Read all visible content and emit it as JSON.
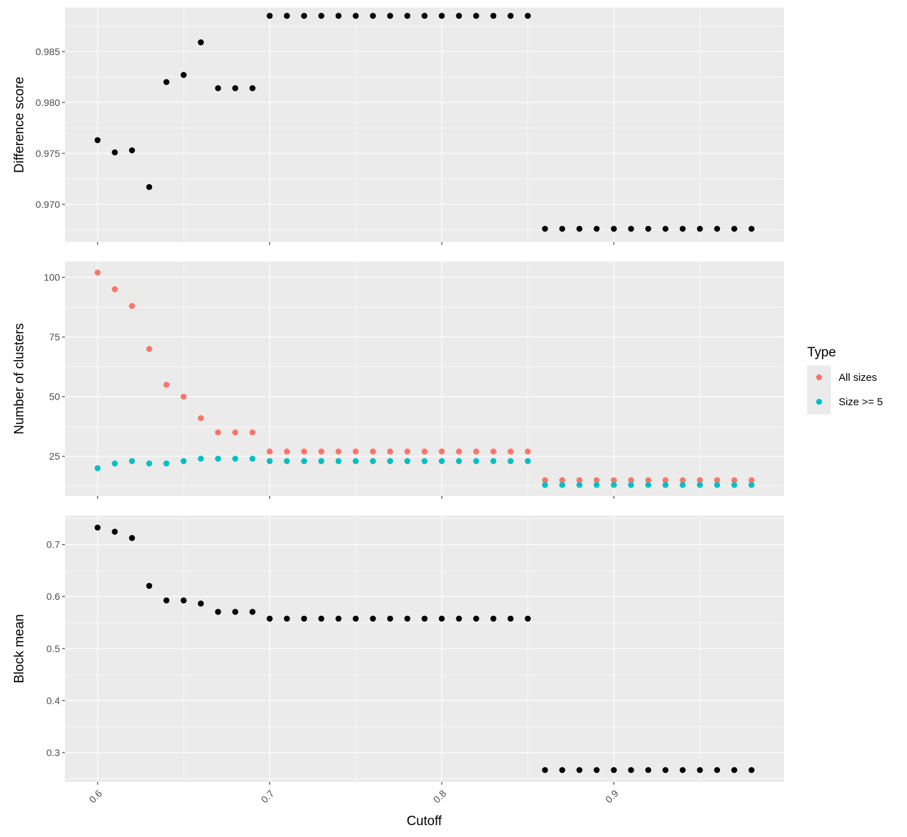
{
  "chart_data": {
    "type": "scatter",
    "xlabel": "Cutoff",
    "xlim": [
      0.581,
      0.999
    ],
    "xticks": [
      "0.6",
      "0.7",
      "0.8",
      "0.9"
    ],
    "xtick_values": [
      0.6,
      0.7,
      0.8,
      0.9
    ],
    "x": [
      0.6,
      0.61,
      0.62,
      0.63,
      0.64,
      0.65,
      0.66,
      0.67,
      0.68,
      0.69,
      0.7,
      0.71,
      0.72,
      0.73,
      0.74,
      0.75,
      0.76,
      0.77,
      0.78,
      0.79,
      0.8,
      0.81,
      0.82,
      0.83,
      0.84,
      0.85,
      0.86,
      0.87,
      0.88,
      0.89,
      0.9,
      0.91,
      0.92,
      0.93,
      0.94,
      0.95,
      0.96,
      0.97,
      0.98
    ],
    "panels": [
      {
        "ylabel": "Difference score",
        "ylim": [
          0.9663,
          0.9893
        ],
        "yticks": [
          "0.970",
          "0.975",
          "0.980",
          "0.985"
        ],
        "ytick_values": [
          0.97,
          0.975,
          0.98,
          0.985
        ],
        "series": [
          {
            "color": "#000000",
            "values": [
              0.9763,
              0.9751,
              0.9753,
              0.9717,
              0.982,
              0.9827,
              0.9859,
              0.9814,
              0.9814,
              0.9814,
              0.9885,
              0.9885,
              0.9885,
              0.9885,
              0.9885,
              0.9885,
              0.9885,
              0.9885,
              0.9885,
              0.9885,
              0.9885,
              0.9885,
              0.9885,
              0.9885,
              0.9885,
              0.9885,
              0.9676,
              0.9676,
              0.9676,
              0.9676,
              0.9676,
              0.9676,
              0.9676,
              0.9676,
              0.9676,
              0.9676,
              0.9676,
              0.9676,
              0.9676
            ]
          }
        ]
      },
      {
        "ylabel": "Number of clusters",
        "ylim": [
          8.4,
          106.6
        ],
        "yticks": [
          "25",
          "50",
          "75",
          "100"
        ],
        "ytick_values": [
          25,
          50,
          75,
          100
        ],
        "series": [
          {
            "name": "All sizes",
            "color": "#F8766D",
            "values": [
              102,
              95,
              88,
              70,
              55,
              50,
              41,
              35,
              35,
              35,
              27,
              27,
              27,
              27,
              27,
              27,
              27,
              27,
              27,
              27,
              27,
              27,
              27,
              27,
              27,
              27,
              15,
              15,
              15,
              15,
              15,
              15,
              15,
              15,
              15,
              15,
              15,
              15,
              15
            ]
          },
          {
            "name": "Size >= 5",
            "color": "#00BFC4",
            "values": [
              20,
              22,
              23,
              22,
              22,
              23,
              24,
              24,
              24,
              24,
              23,
              23,
              23,
              23,
              23,
              23,
              23,
              23,
              23,
              23,
              23,
              23,
              23,
              23,
              23,
              23,
              13,
              13,
              13,
              13,
              13,
              13,
              13,
              13,
              13,
              13,
              13,
              13,
              13
            ]
          }
        ]
      },
      {
        "ylabel": "Block mean",
        "ylim": [
          0.2437,
          0.7558
        ],
        "yticks": [
          "0.3",
          "0.4",
          "0.5",
          "0.6",
          "0.7"
        ],
        "ytick_values": [
          0.3,
          0.4,
          0.5,
          0.6,
          0.7
        ],
        "series": [
          {
            "color": "#000000",
            "values": [
              0.7325,
              0.7245,
              0.7125,
              0.6205,
              0.5925,
              0.5925,
              0.5865,
              0.5705,
              0.5705,
              0.5705,
              0.5575,
              0.5575,
              0.5575,
              0.5575,
              0.5575,
              0.5575,
              0.5575,
              0.5575,
              0.5575,
              0.5575,
              0.5575,
              0.5575,
              0.5575,
              0.5575,
              0.5575,
              0.5575,
              0.2665,
              0.2665,
              0.2665,
              0.2665,
              0.2665,
              0.2665,
              0.2665,
              0.2665,
              0.2665,
              0.2665,
              0.2665,
              0.2665,
              0.2665
            ]
          }
        ]
      }
    ],
    "legend": {
      "title": "Type",
      "placement": "right",
      "entries": [
        {
          "label": "All sizes",
          "color": "#F8766D"
        },
        {
          "label": "Size >= 5",
          "color": "#00BFC4"
        }
      ]
    },
    "grid": true,
    "panel_background": "#EBEBEB",
    "grid_color": "#FFFFFF"
  }
}
